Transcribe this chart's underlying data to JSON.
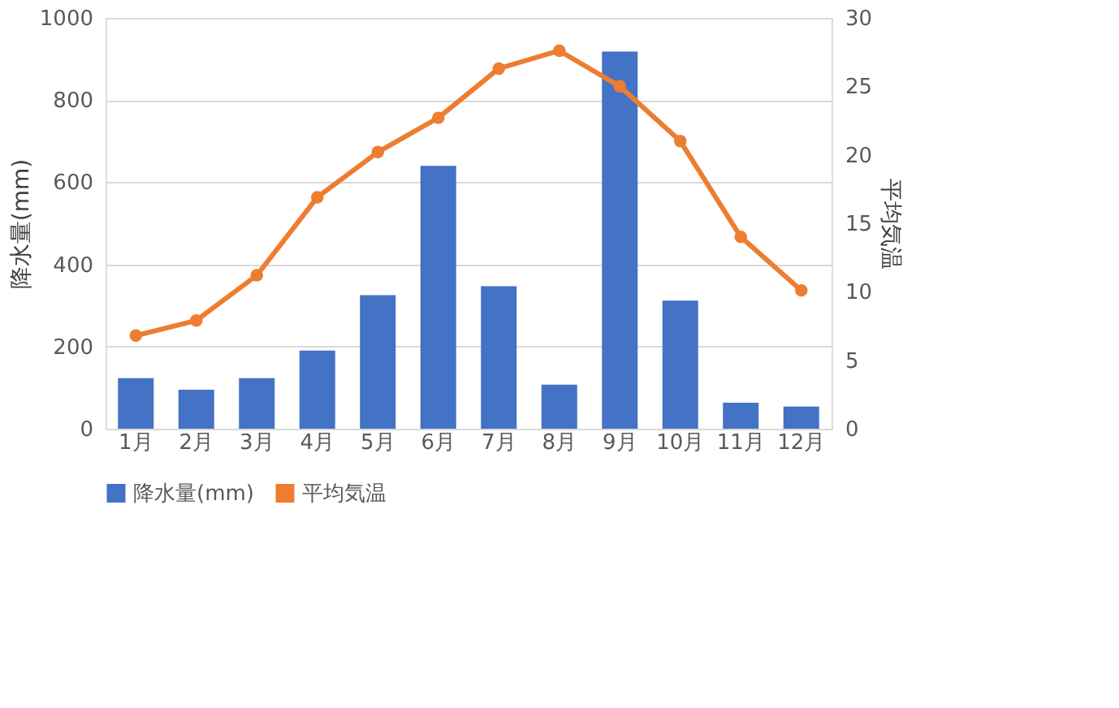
{
  "chart_data": {
    "type": "bar",
    "categories": [
      "1月",
      "2月",
      "3月",
      "4月",
      "5月",
      "6月",
      "7月",
      "8月",
      "9月",
      "10月",
      "11月",
      "12月"
    ],
    "series": [
      {
        "name": "降水量(mm)",
        "color": "#4472c4",
        "values": [
          123,
          95,
          123,
          190,
          325,
          640,
          347,
          107,
          918,
          312,
          63,
          54
        ]
      },
      {
        "name": "平均気温",
        "type": "line",
        "axis": "y2",
        "color": "#ed7d31",
        "marker": "circle",
        "line_style": "solid",
        "values": [
          6.8,
          7.9,
          11.2,
          16.9,
          20.2,
          22.7,
          26.3,
          27.6,
          25.0,
          21.0,
          14.0,
          10.1
        ]
      }
    ],
    "ylabel": "降水量(mm)",
    "y2label": "平均気温",
    "ylim": [
      0,
      1000
    ],
    "yticks": [
      0,
      200,
      400,
      600,
      800,
      1000
    ],
    "y2lim": [
      0,
      30
    ],
    "y2ticks": [
      0,
      5,
      10,
      15,
      20,
      25,
      30
    ],
    "grid": "y",
    "legend": "bottom"
  }
}
